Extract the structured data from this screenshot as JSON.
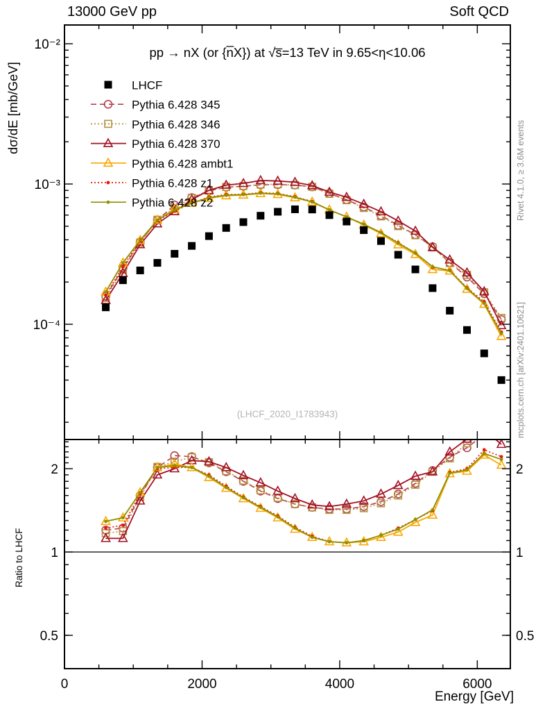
{
  "header": {
    "left": "13000 GeV pp",
    "right": "Soft QCD"
  },
  "side_notes": {
    "top": "Rivet 4.1.0, ≥ 3.6M events",
    "bottom": "mcplots.cern.ch [arXiv:2401.10621]",
    "color": "#8c8c8c"
  },
  "watermark": {
    "text": "(LHCF_2020_I1783943)",
    "color": "#b4b4b4"
  },
  "chart_data": {
    "type": "line",
    "title": "pp  →  nX (or {n̅X}) at √s̅=13 TeV in 9.65<η<10.06",
    "xlabel": "Energy [GeV]",
    "ylabel": "dσ/dE [mb/GeV]",
    "ratio_ylabel": "Ratio to LHCF",
    "x_range": [
      0,
      6480
    ],
    "x_major_ticks": [
      {
        "v": 0,
        "label": "0"
      },
      {
        "v": 2000,
        "label": "2000"
      },
      {
        "v": 4000,
        "label": "4000"
      },
      {
        "v": 6000,
        "label": "6000"
      }
    ],
    "x_minor_step": 500,
    "y_scale": "log",
    "y_range": [
      1.5e-05,
      0.0136
    ],
    "y_major_ticks": [
      {
        "v": 0.01,
        "label": "10⁻²"
      },
      {
        "v": 0.001,
        "label": "10⁻³"
      },
      {
        "v": 0.0001,
        "label": "10⁻⁴"
      }
    ],
    "ratio_scale": "log",
    "ratio_range": [
      0.41,
      2.55
    ],
    "ratio_major_ticks": [
      {
        "v": 2,
        "label": "2"
      },
      {
        "v": 1,
        "label": "1"
      },
      {
        "v": 0.5,
        "label": "0.5"
      }
    ],
    "ratio_reference": 1,
    "legend_position": "top-left-inside",
    "grid": false,
    "x": [
      600,
      850,
      1100,
      1350,
      1600,
      1850,
      2100,
      2350,
      2600,
      2850,
      3100,
      3350,
      3600,
      3850,
      4100,
      4350,
      4600,
      4850,
      5100,
      5350,
      5600,
      5850,
      6100,
      6350
    ],
    "data_series": {
      "name": "LHCF",
      "marker": "square-filled",
      "color": "#000000",
      "values": [
        0.000132,
        0.000206,
        0.000242,
        0.000274,
        0.000318,
        0.000362,
        0.000425,
        0.000486,
        0.000535,
        0.000594,
        0.000634,
        0.00066,
        0.000658,
        0.0006,
        0.00054,
        0.000469,
        0.000392,
        0.000313,
        0.000246,
        0.000181,
        0.000125,
        9.1e-05,
        6.2e-05,
        4e-05
      ]
    },
    "mc_series": [
      {
        "name": "Pythia 6.428 345",
        "color": "#b2404e",
        "line": "dashed",
        "marker": "circle-open",
        "values": [
          0.000158,
          0.000251,
          0.000387,
          0.000553,
          0.000709,
          0.0008,
          0.000893,
          0.000948,
          0.000963,
          0.000986,
          0.000989,
          0.000983,
          0.000954,
          0.000858,
          0.000772,
          0.000685,
          0.000596,
          0.000507,
          0.000435,
          0.000357,
          0.000275,
          0.000217,
          0.000165,
          0.000108
        ],
        "ratio": [
          1.2,
          1.22,
          1.6,
          2.02,
          2.23,
          2.21,
          2.1,
          1.95,
          1.8,
          1.66,
          1.56,
          1.49,
          1.45,
          1.43,
          1.43,
          1.46,
          1.52,
          1.62,
          1.77,
          1.97,
          2.2,
          2.38,
          2.66,
          2.7
        ]
      },
      {
        "name": "Pythia 6.428 346",
        "color": "#b5913c",
        "line": "dotted",
        "marker": "square-open",
        "values": [
          0.000154,
          0.000245,
          0.000382,
          0.000556,
          0.000674,
          0.000796,
          0.000897,
          0.000953,
          0.000968,
          0.000992,
          0.000995,
          0.000983,
          0.000954,
          0.000852,
          0.000767,
          0.000675,
          0.000588,
          0.000501,
          0.000431,
          0.000353,
          0.000273,
          0.000225,
          0.000169,
          0.000111
        ],
        "ratio": [
          1.17,
          1.19,
          1.58,
          2.03,
          2.12,
          2.2,
          2.11,
          1.96,
          1.81,
          1.67,
          1.57,
          1.49,
          1.45,
          1.42,
          1.42,
          1.44,
          1.5,
          1.6,
          1.75,
          1.95,
          2.18,
          2.47,
          2.72,
          2.77
        ]
      },
      {
        "name": "Pythia 6.428 370",
        "color": "#a31023",
        "line": "solid",
        "marker": "triangle-open",
        "values": [
          0.000148,
          0.000231,
          0.00037,
          0.000521,
          0.000636,
          0.000775,
          0.000901,
          0.000982,
          0.00101,
          0.00106,
          0.00105,
          0.00103,
          0.000974,
          0.000876,
          0.000805,
          0.000718,
          0.000635,
          0.000545,
          0.000462,
          0.000353,
          0.000288,
          0.000233,
          0.000171,
          9.8e-05
        ],
        "ratio": [
          1.12,
          1.12,
          1.53,
          1.9,
          2.0,
          2.14,
          2.12,
          2.02,
          1.89,
          1.78,
          1.66,
          1.56,
          1.48,
          1.46,
          1.49,
          1.53,
          1.62,
          1.74,
          1.88,
          1.95,
          2.3,
          2.56,
          2.76,
          2.45
        ]
      },
      {
        "name": "Pythia 6.428 ambt1",
        "color": "#f9a602",
        "line": "solid",
        "marker": "triangle-open",
        "values": [
          0.00017,
          0.000274,
          0.000397,
          0.000553,
          0.000661,
          0.000731,
          0.000791,
          0.000826,
          0.000835,
          0.000855,
          0.000843,
          0.000799,
          0.000744,
          0.000654,
          0.000583,
          0.000511,
          0.000443,
          0.000369,
          0.000315,
          0.000246,
          0.00024,
          0.000178,
          0.000139,
          8.2e-05
        ],
        "ratio": [
          1.29,
          1.33,
          1.64,
          2.02,
          2.08,
          2.02,
          1.86,
          1.7,
          1.56,
          1.44,
          1.33,
          1.21,
          1.13,
          1.09,
          1.08,
          1.09,
          1.13,
          1.18,
          1.28,
          1.36,
          1.92,
          1.96,
          2.24,
          2.06
        ]
      },
      {
        "name": "Pythia 6.428 z1",
        "color": "#e81309",
        "line": "dotted",
        "marker": "dot",
        "values": [
          0.000161,
          0.000258,
          0.000392,
          0.000548,
          0.000642,
          0.000731,
          0.000808,
          0.000841,
          0.000845,
          0.000867,
          0.000856,
          0.000812,
          0.00075,
          0.000654,
          0.000583,
          0.000516,
          0.000451,
          0.000382,
          0.000322,
          0.000255,
          0.000243,
          0.000182,
          0.000145,
          8.8e-05
        ],
        "ratio": [
          1.22,
          1.25,
          1.62,
          2.0,
          2.02,
          2.02,
          1.9,
          1.73,
          1.58,
          1.46,
          1.35,
          1.23,
          1.14,
          1.09,
          1.08,
          1.1,
          1.15,
          1.22,
          1.31,
          1.41,
          1.94,
          2.0,
          2.34,
          2.21
        ]
      },
      {
        "name": "Pythia 6.428 z2",
        "color": "#8f9000",
        "line": "solid",
        "marker": "dot",
        "values": [
          0.00017,
          0.000274,
          0.000397,
          0.000553,
          0.000652,
          0.000731,
          0.000799,
          0.000831,
          0.00084,
          0.000861,
          0.00085,
          0.000805,
          0.000744,
          0.000654,
          0.000583,
          0.000516,
          0.000451,
          0.000379,
          0.000322,
          0.000257,
          0.000241,
          0.00018,
          0.000141,
          8.6e-05
        ],
        "ratio": [
          1.29,
          1.33,
          1.64,
          2.02,
          2.05,
          2.02,
          1.88,
          1.71,
          1.57,
          1.45,
          1.34,
          1.22,
          1.13,
          1.09,
          1.08,
          1.1,
          1.15,
          1.21,
          1.31,
          1.42,
          1.93,
          1.98,
          2.27,
          2.16
        ]
      }
    ]
  }
}
